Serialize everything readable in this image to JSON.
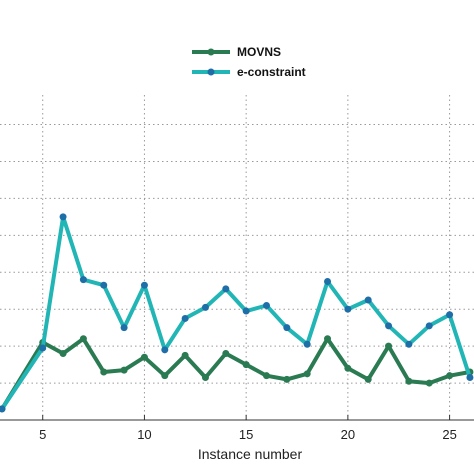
{
  "chart_data": {
    "type": "line",
    "title": "",
    "xlabel": "Instance number",
    "ylabel": "",
    "xlim": [
      2.9,
      26.2
    ],
    "ylim": [
      0,
      8.8
    ],
    "grid": true,
    "legend_position": "top-center",
    "x_ticks": [
      5,
      10,
      15,
      20,
      25
    ],
    "y_gridlines": [
      1,
      2,
      3,
      4,
      5,
      6,
      7,
      8
    ],
    "x": [
      3,
      5,
      6,
      7,
      8,
      9,
      10,
      11,
      12,
      13,
      14,
      15,
      16,
      17,
      18,
      19,
      20,
      21,
      22,
      23,
      24,
      25,
      26
    ],
    "series": [
      {
        "name": "MOVNS",
        "color": "#2a7a52",
        "values": [
          0.3,
          2.1,
          1.8,
          2.2,
          1.3,
          1.35,
          1.7,
          1.2,
          1.75,
          1.15,
          1.8,
          1.5,
          1.2,
          1.1,
          1.25,
          2.2,
          1.4,
          1.1,
          2.0,
          1.05,
          1.0,
          1.2,
          1.3
        ]
      },
      {
        "name": "e-constraint",
        "color": "#22b5b5",
        "values": [
          0.3,
          1.95,
          5.5,
          3.8,
          3.65,
          2.5,
          3.65,
          1.9,
          2.75,
          3.05,
          3.55,
          2.95,
          3.1,
          2.5,
          2.05,
          3.75,
          3.0,
          3.25,
          2.55,
          2.05,
          2.55,
          2.85,
          1.15
        ]
      }
    ]
  }
}
